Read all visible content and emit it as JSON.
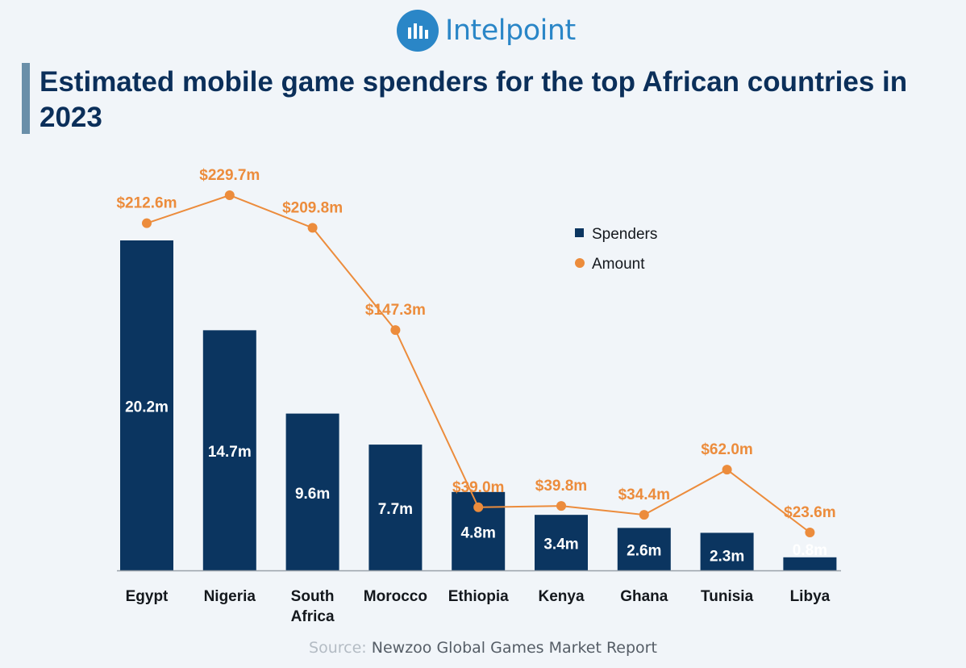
{
  "brand": {
    "name": "Intelpoint",
    "color": "#2a86c7",
    "icon": "bar-chart-icon"
  },
  "title": "Estimated mobile game spenders for the top African countries in 2023",
  "source": {
    "label": "Source:",
    "text": "Newzoo Global Games Market Report"
  },
  "chart_data": {
    "type": "bar",
    "categories": [
      "Egypt",
      "Nigeria",
      "South Africa",
      "Morocco",
      "Ethiopia",
      "Kenya",
      "Ghana",
      "Tunisia",
      "Libya"
    ],
    "category_lines": [
      [
        "Egypt"
      ],
      [
        "Nigeria"
      ],
      [
        "South",
        "Africa"
      ],
      [
        "Morocco"
      ],
      [
        "Ethiopia"
      ],
      [
        "Kenya"
      ],
      [
        "Ghana"
      ],
      [
        "Tunisia"
      ],
      [
        "Libya"
      ]
    ],
    "series": [
      {
        "name": "Spenders",
        "type": "bar",
        "color": "#0b3560",
        "values": [
          20.2,
          14.7,
          9.6,
          7.7,
          4.8,
          3.4,
          2.6,
          2.3,
          0.8
        ],
        "labels": [
          "20.2m",
          "14.7m",
          "9.6m",
          "7.7m",
          "4.8m",
          "3.4m",
          "2.6m",
          "2.3m",
          "0.8m"
        ]
      },
      {
        "name": "Amount",
        "type": "line",
        "color": "#ec8c3c",
        "values": [
          212.6,
          229.7,
          209.8,
          147.3,
          39.0,
          39.8,
          34.4,
          62.0,
          23.6
        ],
        "labels": [
          "$212.6m",
          "$229.7m",
          "$209.8m",
          "$147.3m",
          "$39.0m",
          "$39.8m",
          "$34.4m",
          "$62.0m",
          "$23.6m"
        ]
      }
    ],
    "legend": "top-right",
    "grid": false
  }
}
